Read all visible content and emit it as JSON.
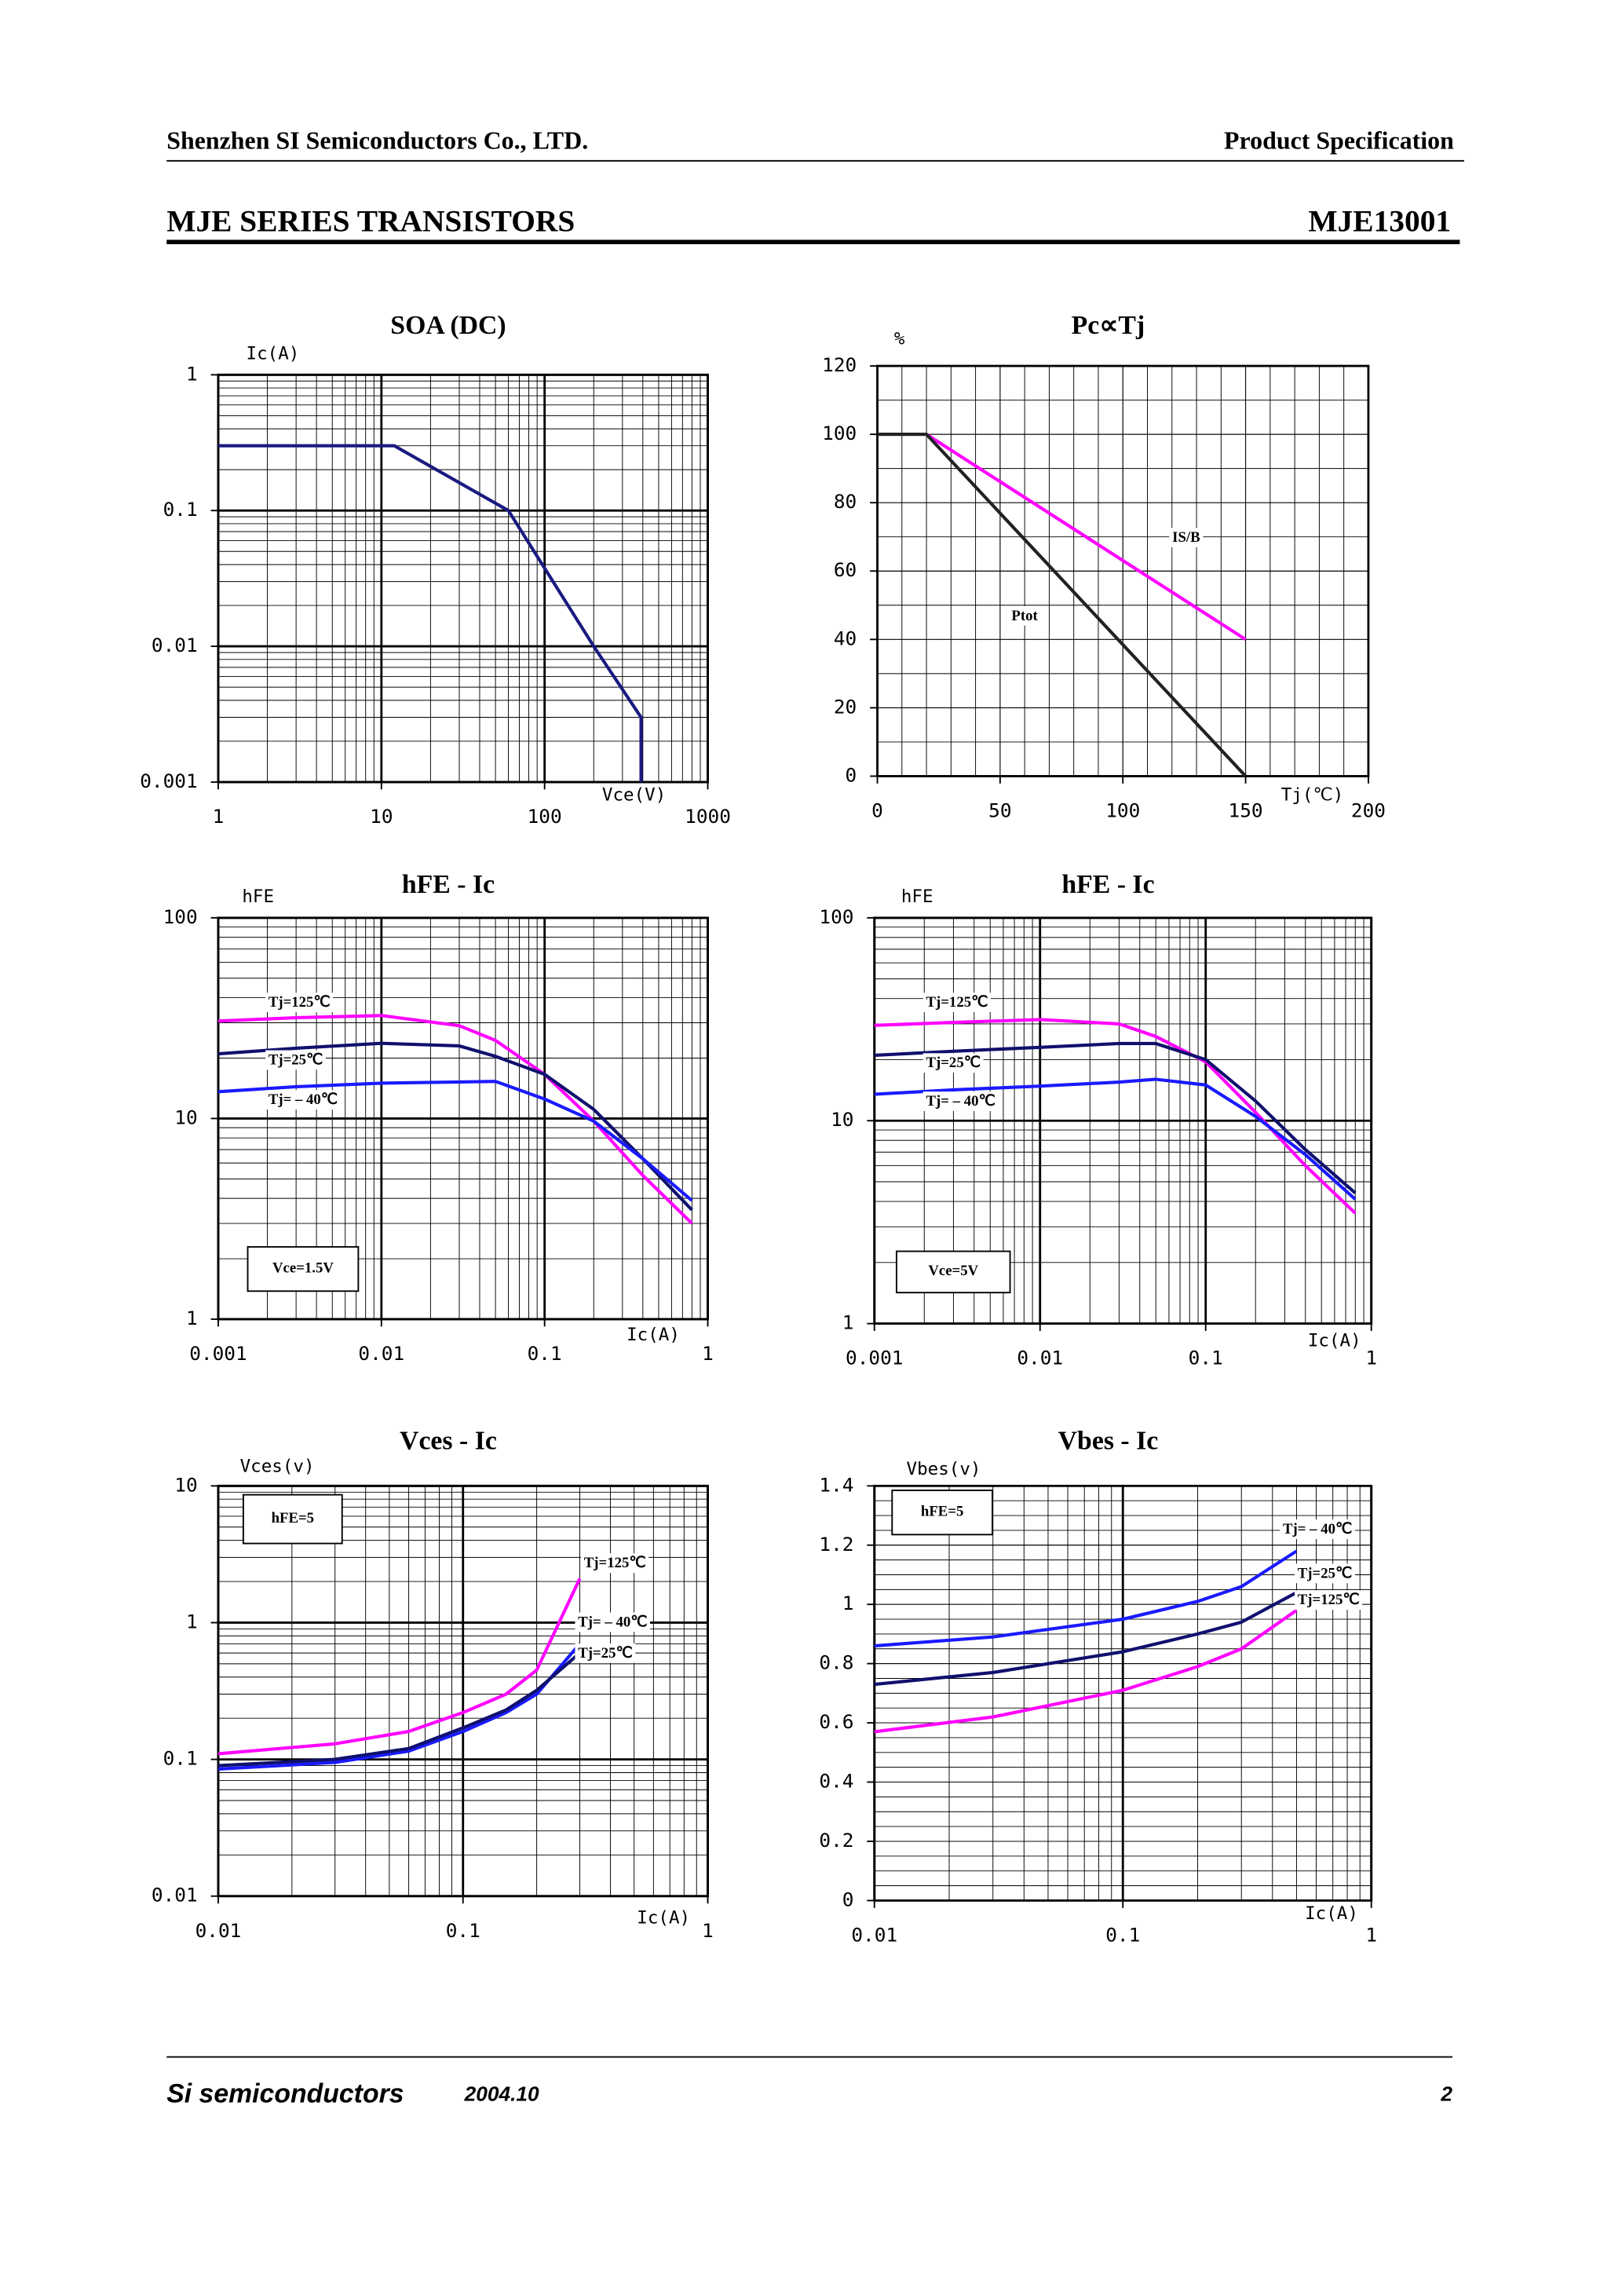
{
  "header": {
    "company": "Shenzhen SI Semiconductors Co., LTD.",
    "doc_type": "Product Specification",
    "series": "MJE SERIES TRANSISTORS",
    "part": "MJE13001"
  },
  "footer": {
    "brand": "Si semiconductors",
    "date": "2004.10",
    "page": "2"
  },
  "chart_data": [
    {
      "type": "line",
      "title": "SOA (DC)",
      "ylabel": "Ic(A)",
      "xlabel": "Vce(V)",
      "xlog": true,
      "ylog": true,
      "grid": true,
      "xlim": [
        1,
        1000
      ],
      "ylim": [
        0.001,
        1
      ],
      "xticks": [
        1,
        10,
        100,
        1000
      ],
      "yticks": [
        0.001,
        0.01,
        0.1,
        1
      ],
      "x": [
        1,
        12,
        60,
        200,
        390,
        390
      ],
      "series": [
        {
          "color": "#1a1a80",
          "values": [
            0.3,
            0.3,
            0.1,
            0.01,
            0.003,
            0.001
          ]
        }
      ]
    },
    {
      "type": "line",
      "title": "Pc∝Tj",
      "ylabel": "%",
      "xlabel": "Tj(℃)",
      "xlog": false,
      "ylog": false,
      "grid": true,
      "grid_step": {
        "x": 10,
        "y": 10
      },
      "xlim": [
        0,
        200
      ],
      "ylim": [
        0,
        120
      ],
      "xticks": [
        0,
        50,
        100,
        150,
        200
      ],
      "yticks": [
        0,
        20,
        40,
        60,
        80,
        100,
        120
      ],
      "x": [
        0,
        20,
        150
      ],
      "series": [
        {
          "name": "IS/B",
          "color": "#ff00ff",
          "values": [
            100,
            100,
            40
          ]
        },
        {
          "name": "Ptot",
          "color": "#222222",
          "values": [
            100,
            100,
            0
          ]
        }
      ]
    },
    {
      "type": "line",
      "title": "hFE - Ic",
      "ylabel": "hFE",
      "xlabel": "Ic(A)",
      "annotation": "Vce=1.5V",
      "xlog": true,
      "ylog": true,
      "grid": true,
      "xlim": [
        0.001,
        1
      ],
      "ylim": [
        1,
        100
      ],
      "xticks": [
        0.001,
        0.01,
        0.1,
        1
      ],
      "yticks": [
        1,
        10,
        100
      ],
      "x": [
        0.001,
        0.003,
        0.01,
        0.03,
        0.05,
        0.1,
        0.2,
        0.4,
        0.8
      ],
      "series": [
        {
          "name": "Tj=125℃",
          "color": "#ff00ff",
          "values": [
            30.6,
            31.8,
            32.6,
            29,
            24.5,
            16.6,
            9.7,
            5.2,
            3.0
          ]
        },
        {
          "name": "Tj=25℃",
          "color": "#10106e",
          "values": [
            21,
            22.4,
            23.7,
            23,
            20.4,
            16.6,
            11.1,
            6.3,
            3.5
          ]
        },
        {
          "name": "Tj= – 40℃",
          "color": "#1a1aff",
          "values": [
            13.6,
            14.4,
            15,
            15.2,
            15.3,
            12.5,
            9.7,
            6.3,
            3.9
          ]
        }
      ]
    },
    {
      "type": "line",
      "title": "hFE - Ic",
      "ylabel": "hFE",
      "xlabel": "Ic(A)",
      "annotation": "Vce=5V",
      "xlog": true,
      "ylog": true,
      "grid": true,
      "xlim": [
        0.001,
        1
      ],
      "ylim": [
        1,
        100
      ],
      "xticks": [
        0.001,
        0.01,
        0.1,
        1
      ],
      "yticks": [
        1,
        10,
        100
      ],
      "x": [
        0.001,
        0.003,
        0.01,
        0.03,
        0.05,
        0.1,
        0.2,
        0.4,
        0.8
      ],
      "series": [
        {
          "name": "Tj=125℃",
          "color": "#ff00ff",
          "values": [
            29.5,
            30.5,
            31.5,
            30,
            26,
            19.5,
            11,
            6,
            3.5
          ]
        },
        {
          "name": "Tj=25℃",
          "color": "#10106e",
          "values": [
            21,
            22,
            23,
            24,
            24,
            20,
            12.5,
            7.2,
            4.4
          ]
        },
        {
          "name": "Tj= – 40℃",
          "color": "#1a1aff",
          "values": [
            13.5,
            14.2,
            14.8,
            15.5,
            16,
            15,
            10.5,
            6.8,
            4.1
          ]
        }
      ]
    },
    {
      "type": "line",
      "title": "Vces - Ic",
      "ylabel": "Vces(v)",
      "xlabel": "Ic(A)",
      "annotation": "hFE=5",
      "xlog": true,
      "ylog": true,
      "grid": true,
      "xlim": [
        0.01,
        1
      ],
      "ylim": [
        0.01,
        10
      ],
      "xticks": [
        0.01,
        0.1,
        1
      ],
      "yticks": [
        0.01,
        0.1,
        1,
        10
      ],
      "x": [
        0.01,
        0.03,
        0.06,
        0.1,
        0.15,
        0.2,
        0.3
      ],
      "series": [
        {
          "name": "Tj=125℃",
          "color": "#ff00ff",
          "values": [
            0.11,
            0.13,
            0.16,
            0.22,
            0.3,
            0.45,
            2.1
          ]
        },
        {
          "name": "Tj= – 40℃",
          "color": "#1a1aff",
          "values": [
            0.085,
            0.095,
            0.115,
            0.16,
            0.22,
            0.3,
            0.7
          ]
        },
        {
          "name": "Tj=25℃",
          "color": "#10106e",
          "values": [
            0.09,
            0.1,
            0.12,
            0.17,
            0.23,
            0.32,
            0.6
          ]
        }
      ]
    },
    {
      "type": "line",
      "title": "Vbes - Ic",
      "ylabel": "Vbes(v)",
      "xlabel": "Ic(A)",
      "annotation": "hFE=5",
      "xlog": true,
      "ylog": false,
      "grid": true,
      "grid_step": {
        "y": 0.05
      },
      "xlim": [
        0.01,
        1
      ],
      "ylim": [
        0,
        1.4
      ],
      "xticks": [
        0.01,
        0.1,
        1
      ],
      "yticks": [
        0,
        0.2,
        0.4,
        0.6,
        0.8,
        1,
        1.2,
        1.4
      ],
      "x": [
        0.01,
        0.03,
        0.1,
        0.2,
        0.3,
        0.5
      ],
      "series": [
        {
          "name": "Tj= – 40℃",
          "color": "#1a1aff",
          "values": [
            0.86,
            0.89,
            0.95,
            1.01,
            1.06,
            1.18
          ]
        },
        {
          "name": "Tj=25℃",
          "color": "#10106e",
          "values": [
            0.73,
            0.77,
            0.84,
            0.9,
            0.94,
            1.04
          ]
        },
        {
          "name": "Tj=125℃",
          "color": "#ff00ff",
          "values": [
            0.57,
            0.62,
            0.71,
            0.79,
            0.85,
            0.98
          ]
        }
      ]
    }
  ]
}
